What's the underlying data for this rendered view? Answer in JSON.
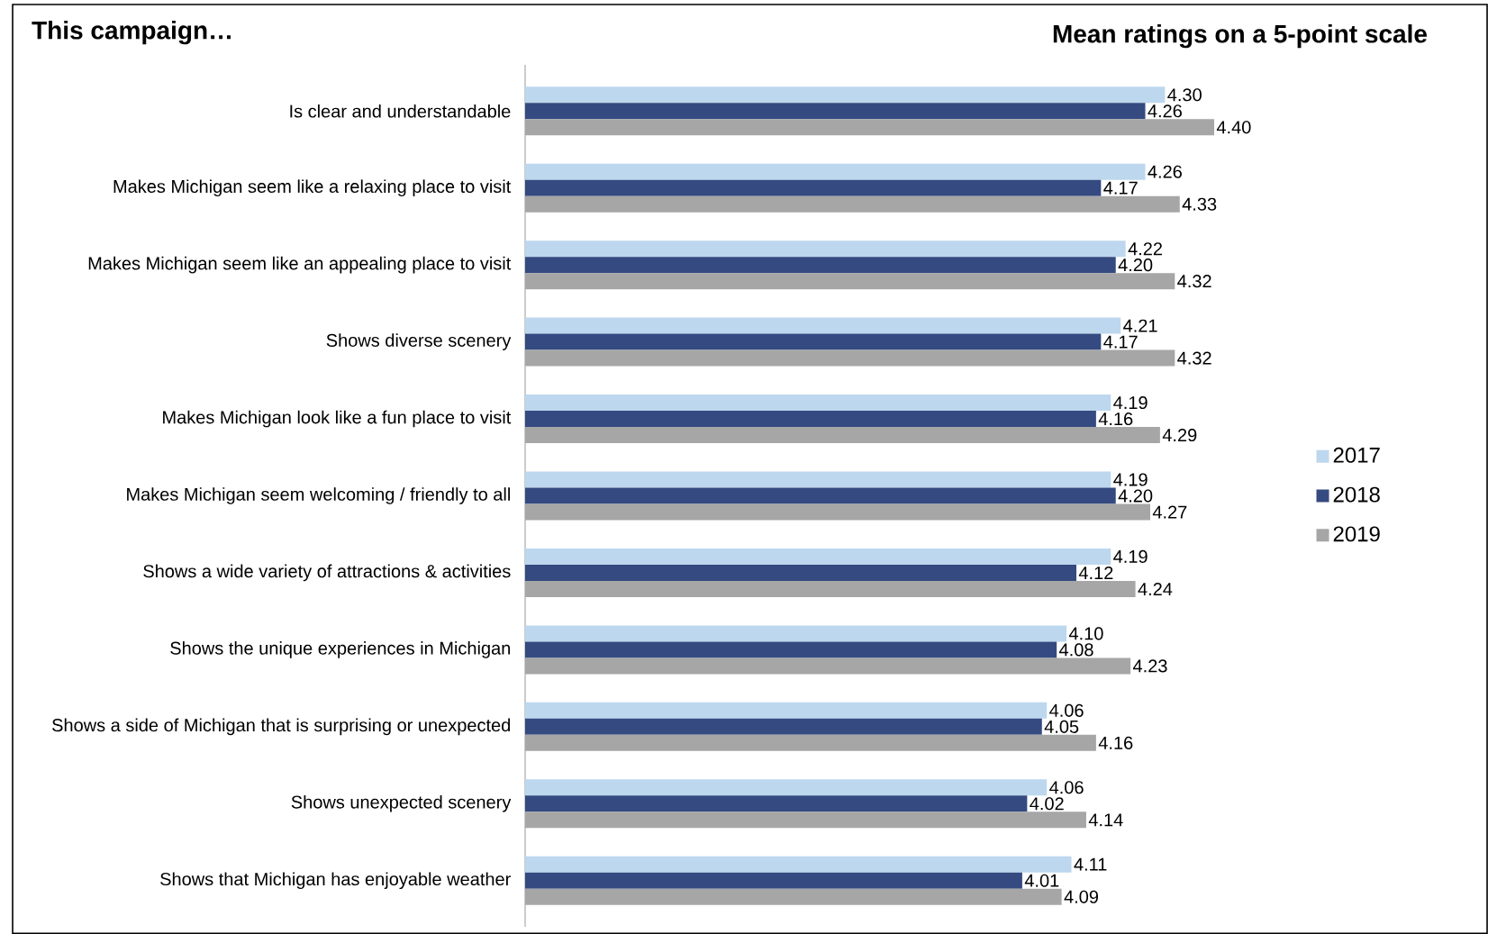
{
  "chart_data": {
    "type": "bar",
    "orientation": "horizontal",
    "title": "Mean ratings on a 5-point scale",
    "ylabel": "This campaign…",
    "categories": [
      "Is clear and understandable",
      "Makes Michigan seem like a relaxing place to visit",
      "Makes Michigan seem like an appealing place to visit",
      "Shows diverse scenery",
      "Makes Michigan look like a fun place to visit",
      "Makes Michigan seem welcoming / friendly to all",
      "Shows a wide variety of attractions & activities",
      "Shows the unique experiences in Michigan",
      "Shows a side of Michigan that is surprising or unexpected",
      "Shows unexpected scenery",
      "Shows that Michigan has enjoyable weather"
    ],
    "xlim": [
      3,
      4.4
    ],
    "tick_labels": "y",
    "legend": "right",
    "series": [
      {
        "name": "2017",
        "color": "#bdd7ee",
        "values": [
          4.3,
          4.26,
          4.22,
          4.21,
          4.19,
          4.19,
          4.19,
          4.1,
          4.06,
          4.06,
          4.11
        ],
        "value_labels": [
          "4.30",
          "4.26",
          "4.22",
          "4.21",
          "4.19",
          "4.19",
          "4.19",
          "4.10",
          "4.06",
          "4.06",
          "4.11"
        ]
      },
      {
        "name": "2018",
        "color": "#344a80",
        "values": [
          4.26,
          4.17,
          4.2,
          4.17,
          4.16,
          4.2,
          4.12,
          4.08,
          4.05,
          4.02,
          4.01
        ],
        "value_labels": [
          "4.26",
          "4.17",
          "4.20",
          "4.17",
          "4.16",
          "4.20",
          "4.12",
          "4.08",
          "4.05",
          "4.02",
          "4.01"
        ]
      },
      {
        "name": "2019",
        "color": "#a6a6a6",
        "values": [
          4.4,
          4.33,
          4.32,
          4.32,
          4.29,
          4.27,
          4.24,
          4.23,
          4.16,
          4.14,
          4.09
        ],
        "value_labels": [
          "4.40",
          "4.33",
          "4.32",
          "4.32",
          "4.29",
          "4.27",
          "4.24",
          "4.23",
          "4.16",
          "4.14",
          "4.09"
        ]
      }
    ]
  }
}
